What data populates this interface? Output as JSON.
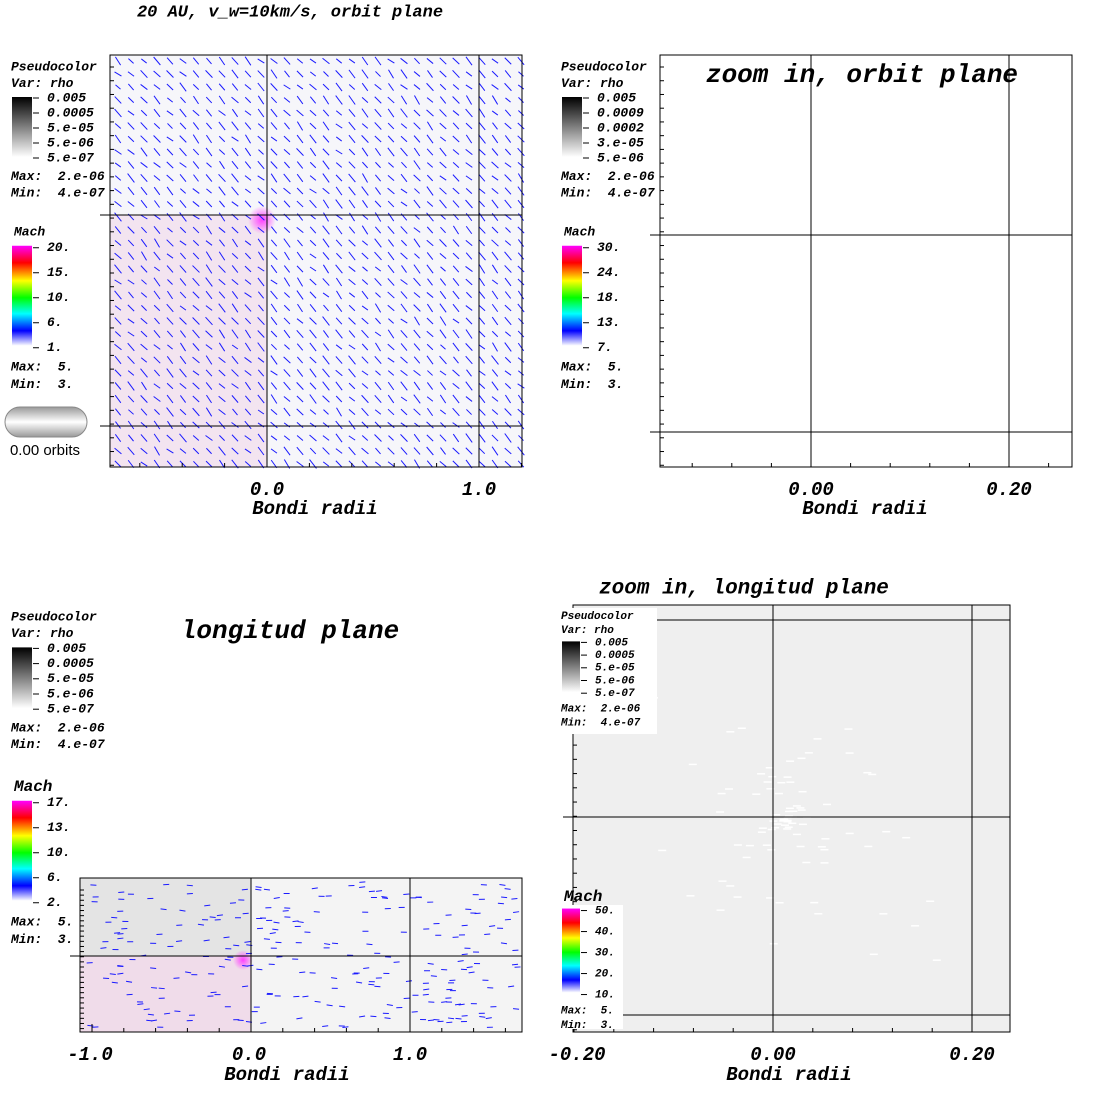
{
  "title": "20 AU, v_w=10km/s, orbit plane",
  "panels": [
    {
      "legend_rho": {
        "label": "Pseudocolor",
        "var": "Var: rho",
        "ticks": [
          "0.005",
          "0.0005",
          "5.e-05",
          "5.e-06",
          "5.e-07"
        ],
        "max": "Max:  2.e-06",
        "min": "Min:  4.e-07"
      },
      "legend_mach": {
        "label": "Mach",
        "ticks": [
          "20.",
          "15.",
          "10.",
          "6.",
          "1."
        ],
        "max": "Max:  5.",
        "min": "Min:  3."
      },
      "time": "0.00 orbits",
      "xticks": [
        "0.0",
        "1.0"
      ],
      "xlabel": "Bondi radii"
    },
    {
      "title": "zoom in, orbit plane",
      "legend_rho": {
        "label": "Pseudocolor",
        "var": "Var: rho",
        "ticks": [
          "0.005",
          "0.0009",
          "0.0002",
          "3.e-05",
          "5.e-06"
        ],
        "max": "Max:  2.e-06",
        "min": "Min:  4.e-07"
      },
      "legend_mach": {
        "label": "Mach",
        "ticks": [
          "30.",
          "24.",
          "18.",
          "13.",
          "7."
        ],
        "max": "Max:  5.",
        "min": "Min:  3."
      },
      "xticks": [
        "0.00",
        "0.20"
      ],
      "xlabel": "Bondi radii"
    },
    {
      "title": "longitud plane",
      "legend_rho": {
        "label": "Pseudocolor",
        "var": "Var: rho",
        "ticks": [
          "0.005",
          "0.0005",
          "5.e-05",
          "5.e-06",
          "5.e-07"
        ],
        "max": "Max:  2.e-06",
        "min": "Min:  4.e-07"
      },
      "legend_mach": {
        "label": "Mach",
        "ticks": [
          "17.",
          "13.",
          "10.",
          "6.",
          "2."
        ],
        "max": "Max:  5.",
        "min": "Min:  3."
      },
      "xticks": [
        "-1.0",
        "0.0",
        "1.0"
      ],
      "xlabel": "Bondi radii"
    },
    {
      "title": "zoom in, longitud plane",
      "legend_rho": {
        "label": "Pseudocolor",
        "var": "Var: rho",
        "ticks": [
          "0.005",
          "0.0005",
          "5.e-05",
          "5.e-06",
          "5.e-07"
        ],
        "max": "Max:  2.e-06",
        "min": "Min:  4.e-07"
      },
      "legend_mach": {
        "label": "Mach",
        "ticks": [
          "50.",
          "40.",
          "30.",
          "20.",
          "10."
        ],
        "max": "Max:  5.",
        "min": "Min:  3."
      },
      "xticks": [
        "-0.20",
        "0.00",
        "0.20"
      ],
      "xlabel": "Bondi radii"
    }
  ]
}
